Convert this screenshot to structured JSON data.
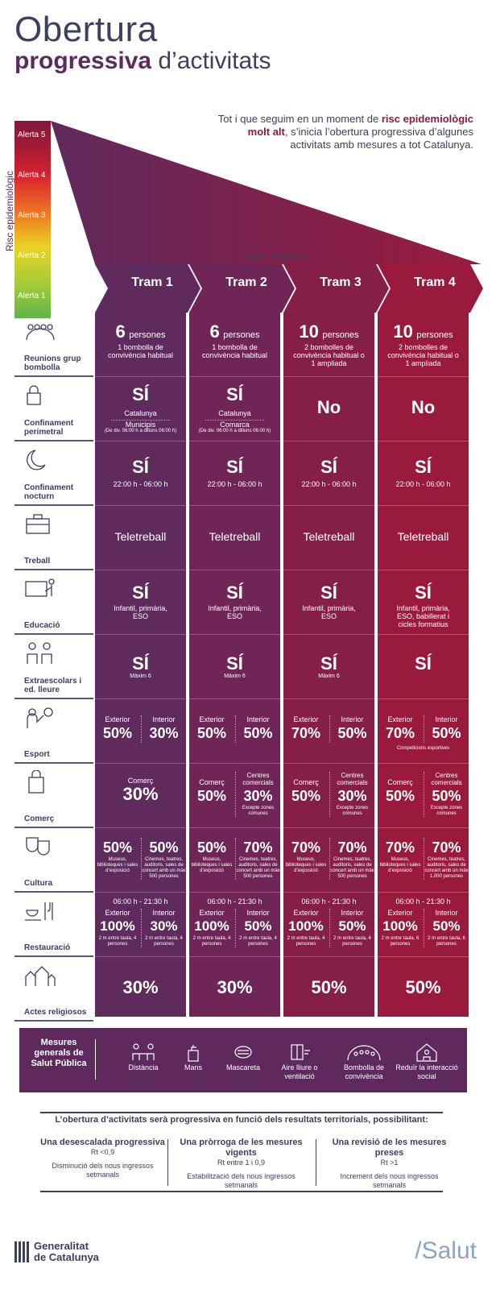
{
  "title": {
    "line1": "Obertura",
    "line2_bold": "progressiva",
    "line2_rest": " d’activitats"
  },
  "intro": {
    "pre": "Tot i que seguim en un moment de ",
    "bold": "risc epidemiològic molt alt",
    "post": ", s’inicia l’obertura progressiva d’algunes activitats amb mesures a tot Catalunya."
  },
  "risk": {
    "label": "Risc epidemiològic",
    "alerts": [
      "Alerta 5",
      "Alerta 4",
      "Alerta 3",
      "Alerta 2",
      "Alerta 1"
    ]
  },
  "timeline_label": "Línia temporal",
  "trams": [
    "Tram 1",
    "Tram 2",
    "Tram 3",
    "Tram 4"
  ],
  "tram_colors": [
    "#5f2a5c",
    "#6f2656",
    "#851f48",
    "#9a1a3e"
  ],
  "rows": [
    {
      "name": "Reunions grup bombolla",
      "icon": "people-group-icon"
    },
    {
      "name": "Confinament perimetral",
      "icon": "padlock-icon"
    },
    {
      "name": "Confinament nocturn",
      "icon": "moon-icon"
    },
    {
      "name": "Treball",
      "icon": "briefcase-icon"
    },
    {
      "name": "Educació",
      "icon": "teacher-board-icon"
    },
    {
      "name": "Extraescolars i ed. lleure",
      "icon": "children-icon"
    },
    {
      "name": "Esport",
      "icon": "ball-player-icon"
    },
    {
      "name": "Comerç",
      "icon": "shopping-bag-icon"
    },
    {
      "name": "Cultura",
      "icon": "theatre-masks-icon"
    },
    {
      "name": "Restauració",
      "icon": "cup-cutlery-icon"
    },
    {
      "name": "Actes religiosos",
      "icon": "church-icon"
    }
  ],
  "cells": {
    "reunions": [
      {
        "num": "6",
        "unit": "persones",
        "sub": "1 bombolla de convivència habitual"
      },
      {
        "num": "6",
        "unit": "persones",
        "sub": "1 bombolla de convivència habitual"
      },
      {
        "num": "10",
        "unit": "persones",
        "sub": "2 bombolles de convivència habitual o 1 ampliada"
      },
      {
        "num": "10",
        "unit": "persones",
        "sub": "2 bombolles de convivència habitual o 1 ampliada"
      }
    ],
    "perimetral": [
      {
        "main": "SÍ",
        "l1": "Catalunya",
        "l2": "Municipis",
        "l3": "(De div. 06:00 h a dilluns 06:00 h)"
      },
      {
        "main": "SÍ",
        "l1": "Catalunya",
        "l2": "Comarca",
        "l3": "(De div. 06:00 h a dilluns 06:00 h)"
      },
      {
        "main": "No",
        "l1": "",
        "l2": "",
        "l3": ""
      },
      {
        "main": "No",
        "l1": "",
        "l2": "",
        "l3": ""
      }
    ],
    "nocturn": [
      {
        "main": "SÍ",
        "sub": "22:00 h - 06:00 h"
      },
      {
        "main": "SÍ",
        "sub": "22:00 h - 06:00 h"
      },
      {
        "main": "SÍ",
        "sub": "22:00 h - 06:00 h"
      },
      {
        "main": "SÍ",
        "sub": "22:00 h - 06:00 h"
      }
    ],
    "treball": [
      "Teletreball",
      "Teletreball",
      "Teletreball",
      "Teletreball"
    ],
    "educacio": [
      {
        "main": "SÍ",
        "sub": "Infantil, primària, ESO"
      },
      {
        "main": "SÍ",
        "sub": "Infantil, primària, ESO"
      },
      {
        "main": "SÍ",
        "sub": "Infantil, primària, ESO"
      },
      {
        "main": "SÍ",
        "sub": "Infantil, primària, ESO, babillerat i cicles formatius"
      }
    ],
    "extra": [
      {
        "main": "SÍ",
        "sub": "Màxim 6"
      },
      {
        "main": "SÍ",
        "sub": "Màxim 6"
      },
      {
        "main": "SÍ",
        "sub": "Màxim 6"
      },
      {
        "main": "SÍ",
        "sub": ""
      }
    ],
    "esport": [
      {
        "ext": "50%",
        "int": "30%",
        "note": ""
      },
      {
        "ext": "50%",
        "int": "50%",
        "note": ""
      },
      {
        "ext": "70%",
        "int": "50%",
        "note": ""
      },
      {
        "ext": "70%",
        "int": "50%",
        "note": "Competicions esportives"
      }
    ],
    "esport_labels": {
      "ext": "Exterior",
      "int": "Interior"
    },
    "comerc": [
      {
        "single": true,
        "lbl": "Comerç",
        "val": "30%"
      },
      {
        "single": false,
        "lbl": "Comerç",
        "val": "50%",
        "lbl2": "Centres comercials",
        "val2": "30%",
        "note": "Excepte zones comunes"
      },
      {
        "single": false,
        "lbl": "Comerç",
        "val": "50%",
        "lbl2": "Centres comercials",
        "val2": "30%",
        "note": "Excepte zones comunes"
      },
      {
        "single": false,
        "lbl": "Comerç",
        "val": "50%",
        "lbl2": "Centres comercials",
        "val2": "50%",
        "note": "Excepte zones comunes"
      }
    ],
    "cultura": [
      {
        "a": "50%",
        "an": "Museus, biblioteques i sales d’exposició",
        "b": "50%",
        "bn": "Cinemes, teatres, auditoris, sales de concert amb un màx 500 persones"
      },
      {
        "a": "50%",
        "an": "Museus, biblioteques i sales d’exposició",
        "b": "70%",
        "bn": "Cinemes, teatres, auditoris, sales de concert amb un màx 500 persones"
      },
      {
        "a": "70%",
        "an": "Museus, biblioteques i sales d’exposició",
        "b": "70%",
        "bn": "Cinemes, teatres, auditoris, sales de concert amb un màx 500 persones"
      },
      {
        "a": "70%",
        "an": "Museus, biblioteques i sales d’exposició",
        "b": "70%",
        "bn": "Cinemes, teatres, auditoris, sales de concert amb un màx 1.000 persones"
      }
    ],
    "restauracio": [
      {
        "hours": "06:00 h - 21:30 h",
        "ext": "100%",
        "en": "2 m entre taula, 4 persones",
        "int": "30%",
        "inn": "2 m entre taula, 4 persones"
      },
      {
        "hours": "06:00 h - 21:30 h",
        "ext": "100%",
        "en": "2 m entre taula, 4 persones",
        "int": "50%",
        "inn": "2 m entre taula, 4 persones"
      },
      {
        "hours": "06:00 h - 21:30 h",
        "ext": "100%",
        "en": "2 m entre taula, 4 persones",
        "int": "50%",
        "inn": "2 m entre taula, 4 persones"
      },
      {
        "hours": "06:00 h - 21:30 h",
        "ext": "100%",
        "en": "2 m entre taula, 6 persones",
        "int": "50%",
        "inn": "2 m entre taula, 6 persones"
      }
    ],
    "religiosos": [
      "30%",
      "30%",
      "50%",
      "50%"
    ]
  },
  "measures": {
    "title": "Mesures generals de Salut Pública",
    "items": [
      {
        "label": "Distància",
        "icon": "distance-icon"
      },
      {
        "label": "Mans",
        "icon": "hand-soap-icon"
      },
      {
        "label": "Mascareta",
        "icon": "mask-icon"
      },
      {
        "label": "Aire lliure o ventilació",
        "icon": "window-air-icon"
      },
      {
        "label": "Bombolla de convivència",
        "icon": "bubble-group-icon"
      },
      {
        "label": "Reduïr la interacció social",
        "icon": "house-person-icon"
      }
    ]
  },
  "footnote": {
    "header": "L’obertura d’activitats serà progressiva en funció dels resultats territorials, possibilitant:",
    "cols": [
      {
        "t": "Una desescalada progressiva",
        "rt": "Rt <0,9",
        "d": "Disminució dels nous ingressos setmanals"
      },
      {
        "t": "Una pròrroga de les mesures vigents",
        "rt": "Rt entre 1 i 0,9",
        "d": "Estabilització dels nous ingressos setmanals"
      },
      {
        "t": "Una revisió de les mesures preses",
        "rt": "Rt >1",
        "d": "Increment dels nous ingressos setmanals"
      }
    ]
  },
  "footer": {
    "gen1": "Generalitat",
    "gen2": "de Catalunya",
    "salut": "/Salut"
  }
}
